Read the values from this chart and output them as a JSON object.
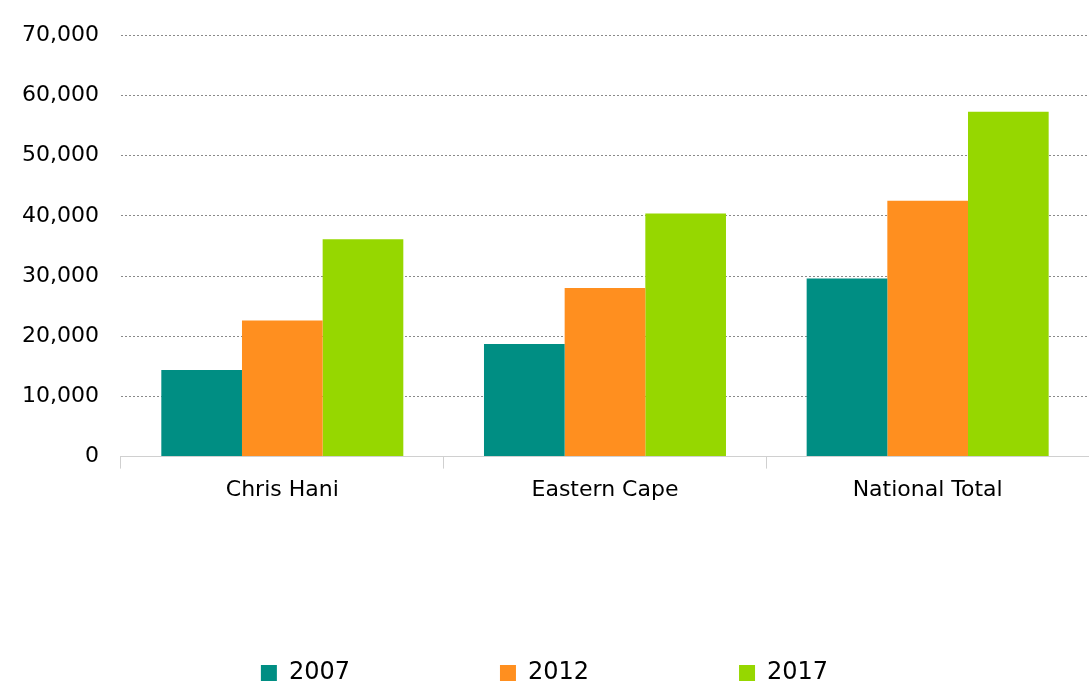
{
  "chart_data": {
    "type": "bar",
    "categories": [
      "Chris Hani",
      "Eastern Cape",
      "National Total"
    ],
    "series": [
      {
        "name": "2007",
        "color": "#008e83",
        "values": [
          14400,
          18700,
          29600
        ]
      },
      {
        "name": "2012",
        "color": "#ff8f1f",
        "values": [
          22600,
          28000,
          42500
        ]
      },
      {
        "name": "2017",
        "color": "#96d700",
        "values": [
          36100,
          40400,
          57300
        ]
      }
    ],
    "ylim": [
      0,
      70000
    ],
    "yticks": [
      {
        "value": 0,
        "label": "0"
      },
      {
        "value": 10000,
        "label": "10,000"
      },
      {
        "value": 20000,
        "label": "20,000"
      },
      {
        "value": 30000,
        "label": "30,000"
      },
      {
        "value": 40000,
        "label": "40,000"
      },
      {
        "value": 50000,
        "label": "50,000"
      },
      {
        "value": 60000,
        "label": "60,000"
      },
      {
        "value": 70000,
        "label": "70,000"
      }
    ],
    "grid": "y",
    "legend": "bottom"
  }
}
